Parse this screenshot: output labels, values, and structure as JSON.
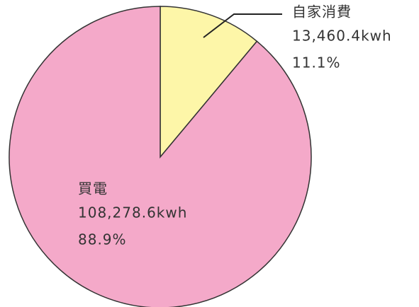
{
  "chart_data": {
    "type": "pie",
    "categories": [
      "自家消費",
      "買電"
    ],
    "values": [
      13460.4,
      108278.6
    ],
    "value_labels": [
      "13,460.4kwh",
      "108,278.6kwh"
    ],
    "percents": [
      11.1,
      88.9
    ],
    "percent_labels": [
      "11.1%",
      "88.9%"
    ],
    "colors": [
      "#fdf6a8",
      "#f4a9c9"
    ]
  }
}
